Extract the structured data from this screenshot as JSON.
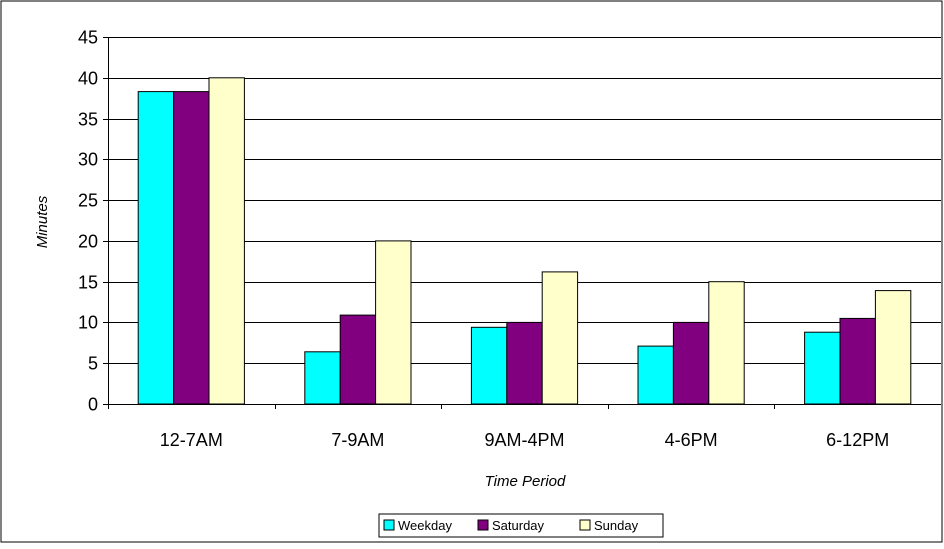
{
  "chart_data": {
    "type": "bar",
    "categories": [
      "12-7AM",
      "7-9AM",
      "9AM-4PM",
      "4-6PM",
      "6-12PM"
    ],
    "series": [
      {
        "name": "Weekday",
        "values": [
          38.3,
          6.4,
          9.4,
          7.1,
          8.8
        ],
        "color": "#00FFFF"
      },
      {
        "name": "Saturday",
        "values": [
          38.3,
          10.9,
          10.0,
          10.0,
          10.5
        ],
        "color": "#800080"
      },
      {
        "name": "Sunday",
        "values": [
          40.0,
          20.0,
          16.2,
          15.0,
          13.9
        ],
        "color": "#FFFFCC"
      }
    ],
    "xlabel": "Time Period",
    "ylabel": "Minutes",
    "ylim": [
      0,
      45
    ],
    "yticks": [
      0,
      5,
      10,
      15,
      20,
      25,
      30,
      35,
      40,
      45
    ],
    "grid": true,
    "legend_position": "bottom"
  }
}
